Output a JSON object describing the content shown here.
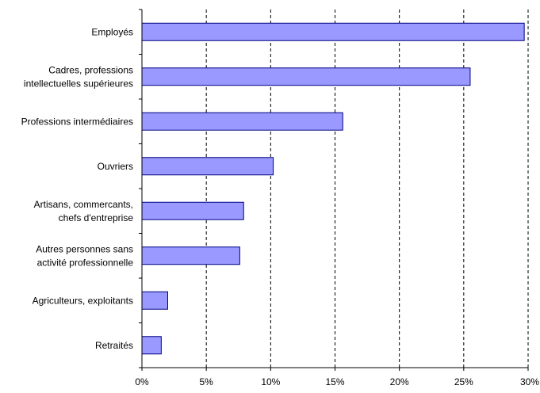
{
  "chart_data": {
    "type": "bar",
    "orientation": "horizontal",
    "categories": [
      [
        "Employés"
      ],
      [
        "Cadres, professions",
        "intellectuelles supérieures"
      ],
      [
        "Professions intermédiaires"
      ],
      [
        "Ouvriers"
      ],
      [
        "Artisans, commercants,",
        "chefs d'entreprise"
      ],
      [
        "Autres personnes sans",
        "activité professionnelle"
      ],
      [
        "Agriculteurs, exploitants"
      ],
      [
        "Retraités"
      ]
    ],
    "values": [
      29.7,
      25.5,
      15.6,
      10.2,
      7.9,
      7.6,
      2.0,
      1.5
    ],
    "xlim": [
      0,
      30
    ],
    "xticks": [
      0,
      5,
      10,
      15,
      20,
      25,
      30
    ],
    "xtick_labels": [
      "0%",
      "5%",
      "10%",
      "15%",
      "20%",
      "25%",
      "30%"
    ],
    "title": "",
    "xlabel": "",
    "ylabel": "",
    "grid": "vertical dashed",
    "legend": "none",
    "bar_color": "#9999ff",
    "bar_border": "#000080"
  }
}
